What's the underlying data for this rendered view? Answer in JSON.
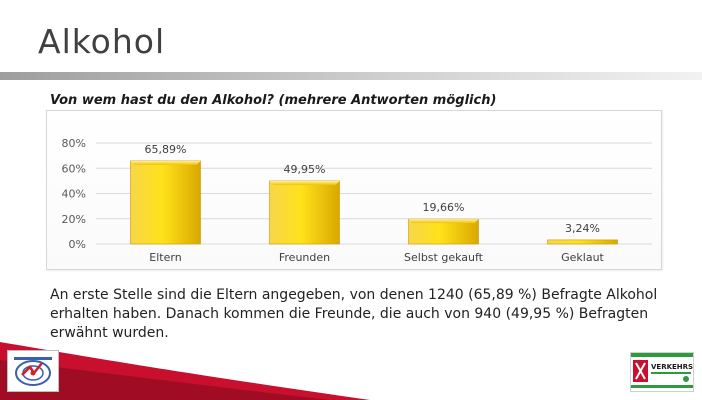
{
  "slide": {
    "title": "Alkohol",
    "body_text": "An erste Stelle sind die Eltern angegeben, von denen 1240 (65,89 %) Befragte Alkohol erhalten haben. Danach kommen die Freunde, die auch von 940 (49,95 %) Befragten erwähnt wurden."
  },
  "chart_data": {
    "type": "bar",
    "title": "Von wem hast du den Alkohol? (mehrere Antworten möglich)",
    "categories": [
      "Eltern",
      "Freunden",
      "Selbst gekauft",
      "Geklaut"
    ],
    "values": [
      65.89,
      49.95,
      19.66,
      3.24
    ],
    "data_labels": [
      "65,89%",
      "49,95%",
      "19,66%",
      "3,24%"
    ],
    "ylim": [
      0,
      80
    ],
    "yticks": [
      0,
      20,
      40,
      60,
      80
    ],
    "ytick_labels": [
      "0%",
      "20%",
      "40%",
      "60%",
      "80%"
    ],
    "grid": true,
    "bar_color": "#f2c200",
    "legend": "none"
  },
  "logos": {
    "left": "organization-logo-icon",
    "right": "verkehrswacht-logo-icon",
    "right_text": "VERKEHRS WACHT"
  }
}
